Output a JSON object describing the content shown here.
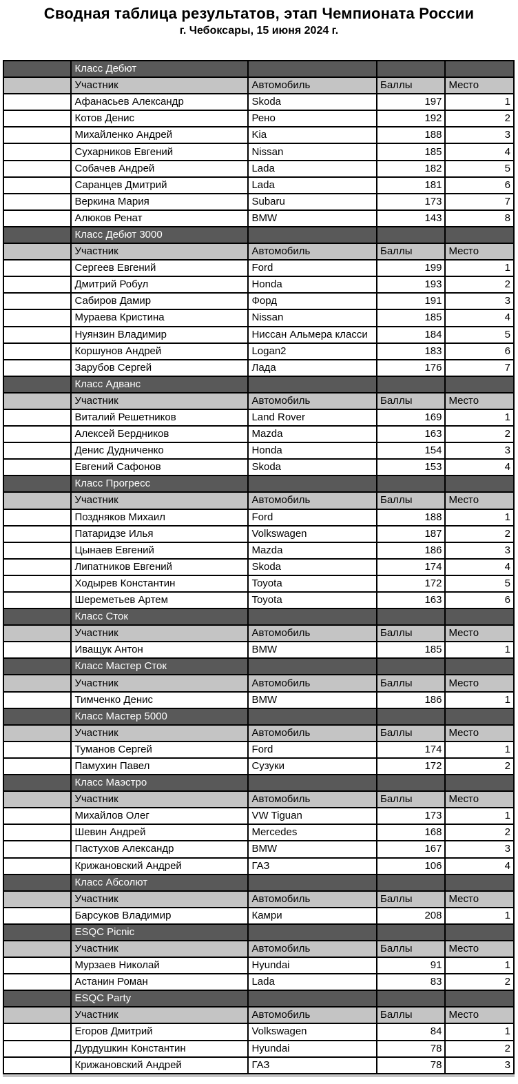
{
  "header": {
    "title": "Сводная таблица результатов, этап Чемпионата России",
    "subtitle": "г. Чебоксары, 15 июня 2024 г."
  },
  "colors": {
    "section_header_bg": "#595959",
    "section_header_text": "#ffffff",
    "column_header_bg": "#c4c4c4",
    "data_row_bg": "#ffffff",
    "border": "#000000"
  },
  "table": {
    "columns": {
      "participant": "Участник",
      "car": "Автомобиль",
      "points": "Баллы",
      "place": "Место"
    },
    "sections": [
      {
        "class_name": "Класс Дебют",
        "rows": [
          {
            "participant": "Афанасьев Александр",
            "car": "Skoda",
            "points": "197",
            "place": "1"
          },
          {
            "participant": "Котов Денис",
            "car": "Рено",
            "points": "192",
            "place": "2"
          },
          {
            "participant": "Михайленко Андрей",
            "car": "Kia",
            "points": "188",
            "place": "3"
          },
          {
            "participant": "Сухарников Евгений",
            "car": "Nissan",
            "points": "185",
            "place": "4"
          },
          {
            "participant": "Собачев  Андрей",
            "car": "Lada",
            "points": "182",
            "place": "5"
          },
          {
            "participant": "Саранцев Дмитрий",
            "car": "Lada",
            "points": "181",
            "place": "6"
          },
          {
            "participant": "Веркина Мария",
            "car": "Subaru",
            "points": "173",
            "place": "7"
          },
          {
            "participant": "Алюков Ренат",
            "car": "BMW",
            "points": "143",
            "place": "8"
          }
        ]
      },
      {
        "class_name": "Класс Дебют 3000",
        "rows": [
          {
            "participant": "Сергеев  Евгений",
            "car": "Ford",
            "points": "199",
            "place": "1"
          },
          {
            "participant": "Дмитрий Робул",
            "car": "Honda",
            "points": "193",
            "place": "2"
          },
          {
            "participant": "Сабиров Дамир",
            "car": "Форд",
            "points": "191",
            "place": "3"
          },
          {
            "participant": "Мураева Кристина",
            "car": "Nissan",
            "points": "185",
            "place": "4"
          },
          {
            "participant": "Нуянзин Владимир",
            "car": "Ниссан Альмера класси",
            "points": "184",
            "place": "5"
          },
          {
            "participant": "Коршунов Андрей",
            "car": "Logan2",
            "points": "183",
            "place": "6"
          },
          {
            "participant": "Зарубов Сергей",
            "car": "Лада",
            "points": "176",
            "place": "7"
          }
        ]
      },
      {
        "class_name": "Класс Адванс",
        "rows": [
          {
            "participant": "Виталий Решетников",
            "car": "Land Rover",
            "points": "169",
            "place": "1"
          },
          {
            "participant": "Алексей Бердников",
            "car": "Mazda",
            "points": "163",
            "place": "2"
          },
          {
            "participant": "Денис Дудниченко",
            "car": "Honda",
            "points": "154",
            "place": "3"
          },
          {
            "participant": "Евгений Сафонов",
            "car": "Skoda",
            "points": "153",
            "place": "4"
          }
        ]
      },
      {
        "class_name": "Класс Прогресс",
        "rows": [
          {
            "participant": "Поздняков Михаил",
            "car": "Ford",
            "points": "188",
            "place": "1"
          },
          {
            "participant": "Патаридзе Илья",
            "car": "Volkswagen",
            "points": "187",
            "place": "2"
          },
          {
            "participant": "Цынаев Евгений",
            "car": "Mazda",
            "points": "186",
            "place": "3"
          },
          {
            "participant": "Липатников Евгений",
            "car": "Skoda",
            "points": "174",
            "place": "4"
          },
          {
            "participant": "Ходырев Константин",
            "car": "Toyota",
            "points": "172",
            "place": "5"
          },
          {
            "participant": "Шереметьев  Артем",
            "car": "Toyota",
            "points": "163",
            "place": "6"
          }
        ]
      },
      {
        "class_name": "Класс Сток",
        "rows": [
          {
            "participant": "Иващук  Антон",
            "car": "BMW",
            "points": "185",
            "place": "1"
          }
        ]
      },
      {
        "class_name": "Класс Мастер Сток",
        "rows": [
          {
            "participant": "Тимченко Денис",
            "car": "BMW",
            "points": "186",
            "place": "1"
          }
        ]
      },
      {
        "class_name": "Класс Мастер 5000",
        "rows": [
          {
            "participant": "Туманов Сергей",
            "car": "Ford",
            "points": "174",
            "place": "1"
          },
          {
            "participant": "Памухин Павел",
            "car": "Сузуки",
            "points": "172",
            "place": "2"
          }
        ]
      },
      {
        "class_name": "Класс Маэстро",
        "rows": [
          {
            "participant": "Михайлов Олег",
            "car": "VW Tiguan",
            "points": "173",
            "place": "1"
          },
          {
            "participant": "Шевин Андрей",
            "car": "Mercedes",
            "points": "168",
            "place": "2"
          },
          {
            "participant": "Пастухов Александр",
            "car": "BMW",
            "points": "167",
            "place": "3"
          },
          {
            "participant": "Крижановский Андрей",
            "car": "ГАЗ",
            "points": "106",
            "place": "4"
          }
        ]
      },
      {
        "class_name": "Класс Абсолют",
        "rows": [
          {
            "participant": "Барсуков Владимир",
            "car": "Камри",
            "points": "208",
            "place": "1"
          }
        ]
      },
      {
        "class_name": "ESQC Picnic",
        "rows": [
          {
            "participant": "Мурзаев Николай",
            "car": "Hyundai",
            "points": "91",
            "place": "1"
          },
          {
            "participant": "Астанин  Роман",
            "car": "Lada",
            "points": "83",
            "place": "2"
          }
        ]
      },
      {
        "class_name": "ESQC Party",
        "rows": [
          {
            "participant": "Егоров Дмитрий",
            "car": "Volkswagen",
            "points": "84",
            "place": "1"
          },
          {
            "participant": "Дурдушкин Константин",
            "car": "Hyundai",
            "points": "78",
            "place": "2"
          },
          {
            "participant": "Крижановский Андрей",
            "car": "ГАЗ",
            "points": "78",
            "place": "3"
          }
        ]
      }
    ]
  }
}
